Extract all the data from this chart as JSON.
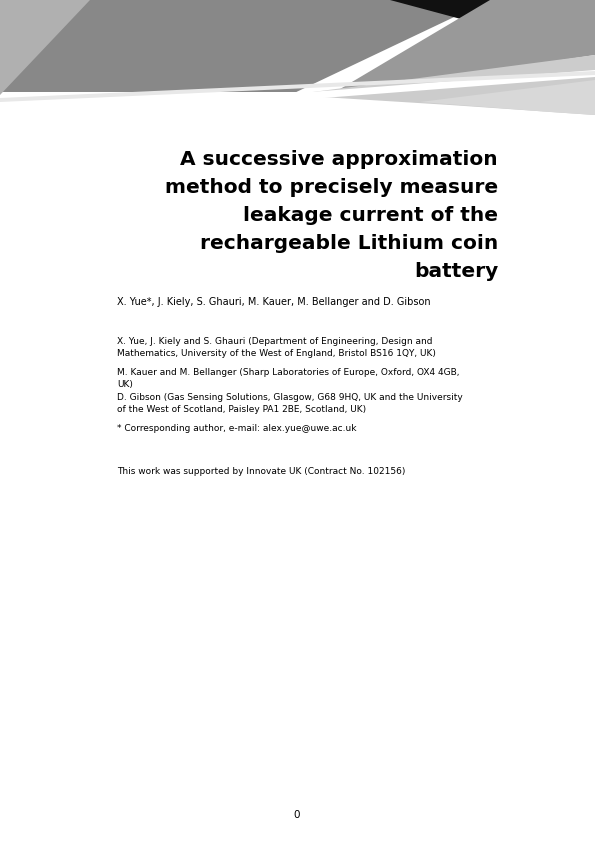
{
  "title_lines": [
    "A successive approximation",
    "method to precisely measure",
    "leakage current of the",
    "rechargeable Lithium coin",
    "battery"
  ],
  "authors_line": "X. Yue*, J. Kiely, S. Ghauri, M. Kauer, M. Bellanger and D. Gibson",
  "affil1": "X. Yue, J. Kiely and S. Ghauri (Department of Engineering, Design and\nMathematics, University of the West of England, Bristol BS16 1QY, UK)",
  "affil2": "M. Kauer and M. Bellanger (Sharp Laboratories of Europe, Oxford, OX4 4GB,\nUK)",
  "affil3": "D. Gibson (Gas Sensing Solutions, Glasgow, G68 9HQ, UK and the University\nof the West of Scotland, Paisley PA1 2BE, Scotland, UK)",
  "corresponding": "* Corresponding author, e-mail: alex.yue@uwe.ac.uk",
  "funding": "This work was supported by Innovate UK (Contract No. 102156)",
  "page_number": "0",
  "bg_color": "#ffffff"
}
